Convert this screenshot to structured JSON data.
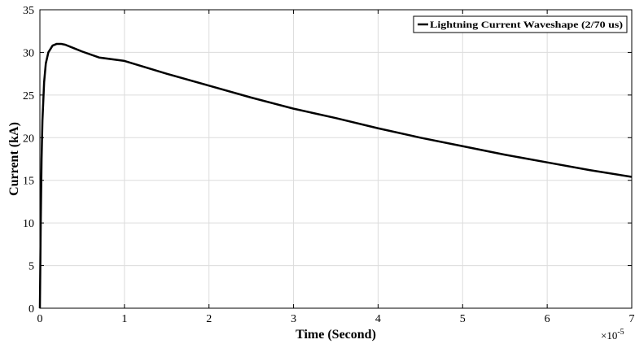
{
  "chart_data": {
    "type": "line",
    "xlabel": "Time (Second)",
    "ylabel": "Current (kA)",
    "x_multiplier": "×10",
    "x_exponent": "-5",
    "xlim": [
      0,
      7e-05
    ],
    "ylim": [
      0,
      35
    ],
    "xticks": [
      0,
      1,
      2,
      3,
      4,
      5,
      6,
      7
    ],
    "yticks": [
      0,
      5,
      10,
      15,
      20,
      25,
      30,
      35
    ],
    "grid": true,
    "legend_position": "top-right",
    "series": [
      {
        "name": "Lightning Current Waveshape (2/70 us)",
        "color": "#000000",
        "x": [
          0,
          1e-07,
          2e-07,
          3e-07,
          5e-07,
          7e-07,
          1e-06,
          1.5e-06,
          2e-06,
          2.5e-06,
          3e-06,
          4e-06,
          5e-06,
          7e-06,
          1e-05,
          1.5e-05,
          2e-05,
          2.5e-05,
          3e-05,
          3.5e-05,
          4e-05,
          4.5e-05,
          5e-05,
          5.5e-05,
          6e-05,
          6.5e-05,
          7e-05
        ],
        "y": [
          0,
          10.0,
          17.5,
          22.0,
          26.5,
          28.7,
          30.0,
          30.8,
          31.0,
          31.0,
          30.9,
          30.5,
          30.1,
          29.4,
          29.0,
          27.5,
          26.1,
          24.7,
          23.4,
          22.3,
          21.1,
          20.0,
          19.0,
          18.0,
          17.1,
          16.2,
          15.4
        ]
      }
    ]
  }
}
